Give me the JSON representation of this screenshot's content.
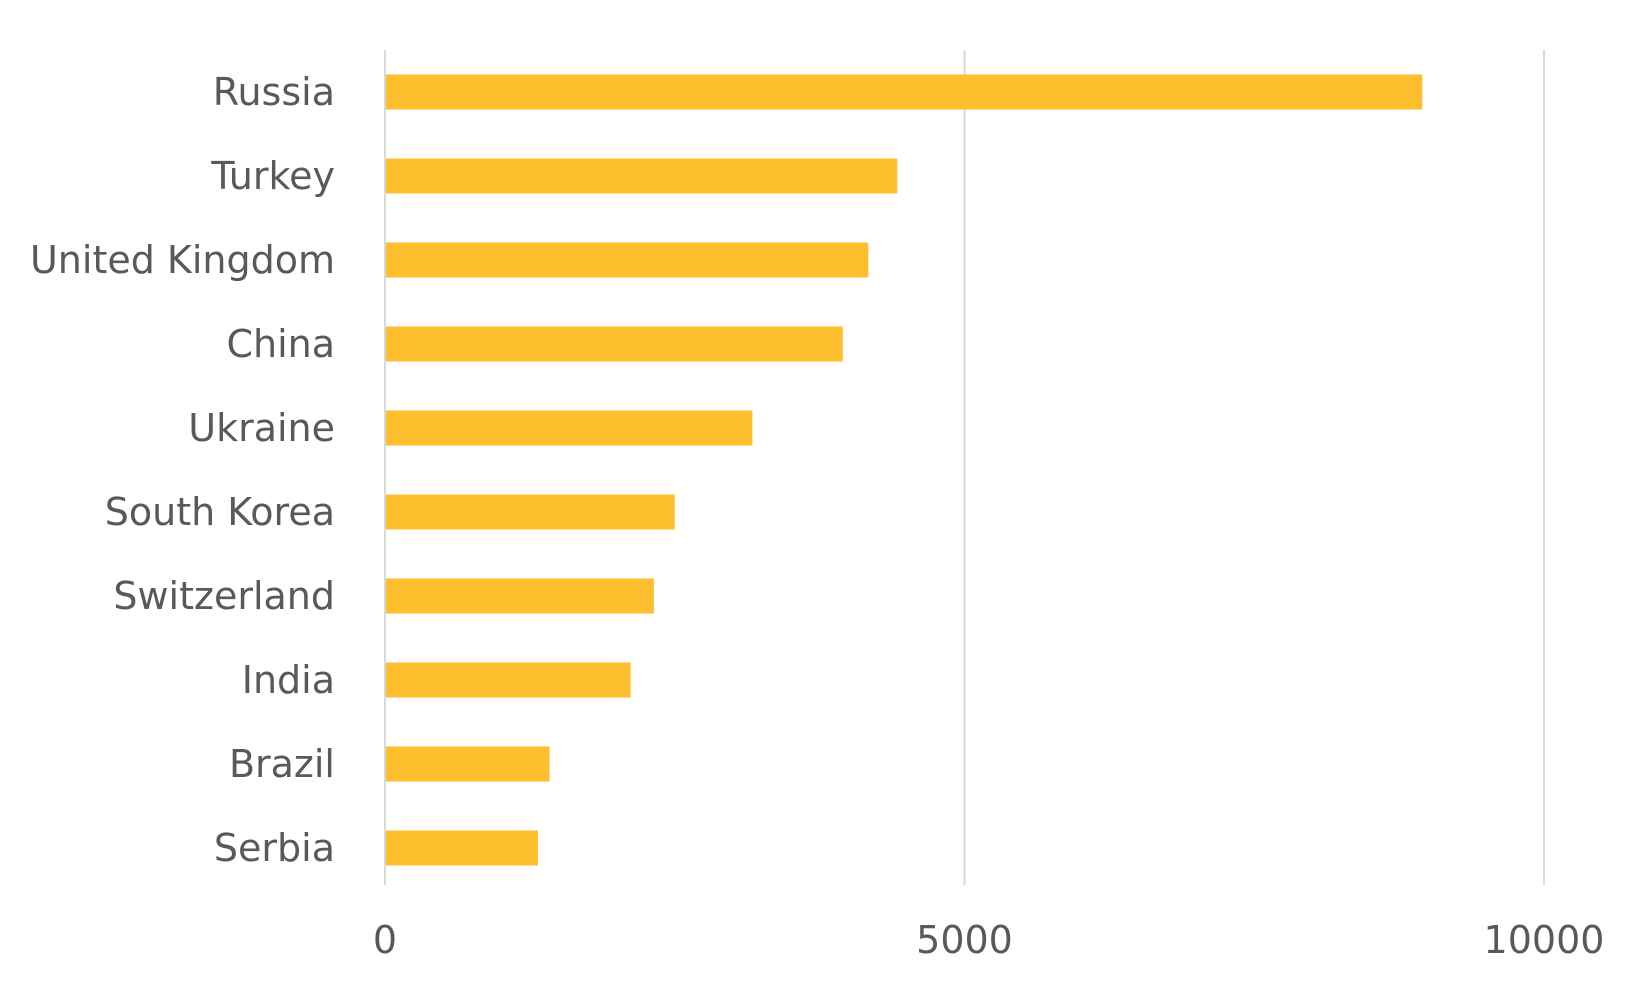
{
  "colors": {
    "bar": "#FDBF2D",
    "gridline": "#D9D9D9",
    "axis": "#D9D9D9",
    "text": "#595959",
    "background": "#FFFFFF"
  },
  "chart_data": {
    "type": "bar",
    "orientation": "horizontal",
    "title": "",
    "xlabel": "",
    "ylabel": "",
    "categories": [
      "Russia",
      "Turkey",
      "United Kingdom",
      "China",
      "Ukraine",
      "South Korea",
      "Switzerland",
      "India",
      "Brazil",
      "Serbia"
    ],
    "values": [
      8950,
      4420,
      4170,
      3950,
      3170,
      2500,
      2320,
      2120,
      1420,
      1320
    ],
    "xlim": [
      0,
      10000
    ],
    "xticks": [
      0,
      5000,
      10000
    ],
    "xtick_labels": [
      "0",
      "5000",
      "10000"
    ],
    "grid": "vertical gridlines on",
    "legend": "none"
  }
}
